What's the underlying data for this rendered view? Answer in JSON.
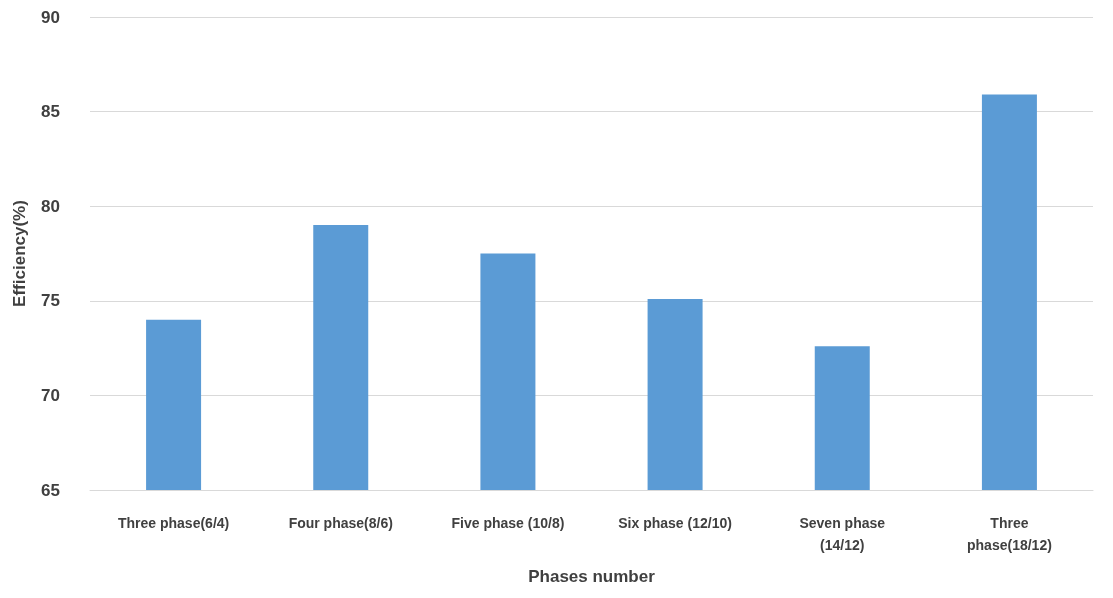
{
  "chart_data": {
    "type": "bar",
    "xlabel": "Phases number",
    "ylabel": "Efficiency(%)",
    "categories": [
      "Three phase(6/4)",
      "Four phase(8/6)",
      "Five phase (10/8)",
      "Six phase (12/10)",
      "Seven phase (14/12)",
      "Three phase(18/12)"
    ],
    "values": [
      74.0,
      79.0,
      77.5,
      75.1,
      72.6,
      85.9
    ],
    "color": "#5b9bd5",
    "ylim": [
      65,
      90
    ],
    "yticks": [
      65,
      70,
      75,
      80,
      85,
      90
    ],
    "grid": "y"
  }
}
